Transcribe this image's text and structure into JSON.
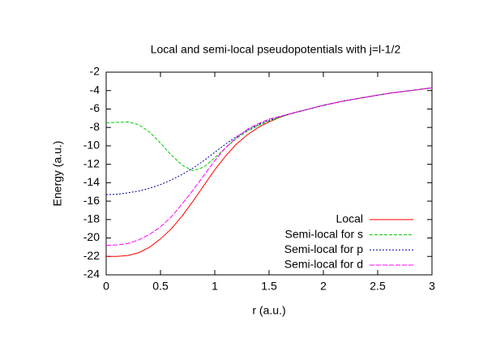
{
  "chart_data": {
    "type": "line",
    "title": "Local and semi-local pseudopotentials with j=l-1/2",
    "x_label": "r (a.u.)",
    "y_label": "Energy (a.u.)",
    "x": [
      0,
      0.1,
      0.2,
      0.3,
      0.4,
      0.5,
      0.6,
      0.7,
      0.8,
      0.9,
      1.0,
      1.1,
      1.2,
      1.3,
      1.4,
      1.5,
      1.6,
      1.7,
      1.8,
      1.9,
      2.0,
      2.2,
      2.4,
      2.6,
      2.8,
      3.0
    ],
    "series": [
      {
        "name": "Local",
        "color": "#ff0000",
        "values": [
          -22,
          -22,
          -21.9,
          -21.6,
          -21.0,
          -20.1,
          -19.0,
          -17.6,
          -16.0,
          -14.3,
          -12.6,
          -11.1,
          -9.8,
          -8.8,
          -8.0,
          -7.4,
          -6.9,
          -6.5,
          -6.2,
          -5.9,
          -5.6,
          -5.1,
          -4.7,
          -4.3,
          -4.0,
          -3.7
        ]
      },
      {
        "name": "Semi-local for s",
        "color": "#00c800",
        "values": [
          -7.5,
          -7.45,
          -7.4,
          -7.7,
          -8.5,
          -9.7,
          -11.0,
          -12.1,
          -12.7,
          -12.3,
          -11.3,
          -10.2,
          -9.2,
          -8.4,
          -7.8,
          -7.3,
          -6.9,
          -6.5,
          -6.2,
          -5.9,
          -5.6,
          -5.1,
          -4.7,
          -4.3,
          -4.0,
          -3.7
        ]
      },
      {
        "name": "Semi-local for p",
        "color": "#0000a0",
        "values": [
          -15.3,
          -15.25,
          -15.1,
          -14.9,
          -14.6,
          -14.2,
          -13.7,
          -13.1,
          -12.4,
          -11.6,
          -10.7,
          -9.8,
          -9.0,
          -8.3,
          -7.7,
          -7.2,
          -6.85,
          -6.5,
          -6.2,
          -5.9,
          -5.6,
          -5.1,
          -4.7,
          -4.3,
          -4.0,
          -3.7
        ]
      },
      {
        "name": "Semi-local for d",
        "color": "#ff00ff",
        "values": [
          -20.8,
          -20.75,
          -20.6,
          -20.2,
          -19.6,
          -18.8,
          -17.7,
          -16.3,
          -14.8,
          -13.2,
          -11.6,
          -10.2,
          -9.1,
          -8.2,
          -7.6,
          -7.1,
          -6.8,
          -6.5,
          -6.2,
          -5.9,
          -5.6,
          -5.1,
          -4.7,
          -4.3,
          -4.0,
          -3.7
        ]
      }
    ],
    "xlim": [
      0,
      3
    ],
    "xticks": [
      0,
      0.5,
      1,
      1.5,
      2,
      2.5,
      3
    ],
    "ylim": [
      -24,
      -2
    ],
    "yticks": [
      -2,
      -4,
      -6,
      -8,
      -10,
      -12,
      -14,
      -16,
      -18,
      -20,
      -22,
      -24
    ],
    "legend": "bottom right"
  }
}
